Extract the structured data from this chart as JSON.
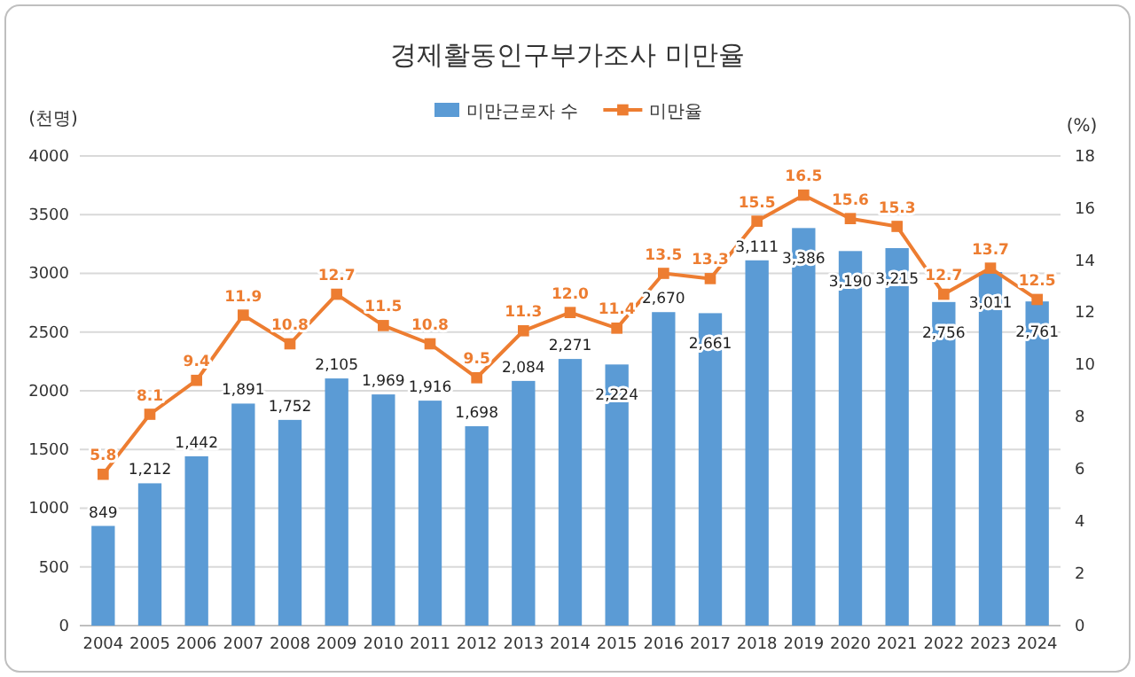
{
  "chart_data": {
    "type": "bar",
    "title": "경제활동인구부가조사 미만율",
    "ylabel": "(천명)",
    "y2label": "(%)",
    "categories": [
      "2004",
      "2005",
      "2006",
      "2007",
      "2008",
      "2009",
      "2010",
      "2011",
      "2012",
      "2013",
      "2014",
      "2015",
      "2016",
      "2017",
      "2018",
      "2019",
      "2020",
      "2021",
      "2022",
      "2023",
      "2024"
    ],
    "series": [
      {
        "name": "미만근로자 수",
        "color": "#5b9bd5",
        "values": [
          849,
          1212,
          1442,
          1891,
          1752,
          2105,
          1969,
          1916,
          1698,
          2084,
          2271,
          2224,
          2670,
          2661,
          3111,
          3386,
          3190,
          3215,
          2756,
          3011,
          2761
        ],
        "value_labels": [
          "849",
          "1,212",
          "1,442",
          "1,891",
          "1,752",
          "2,105",
          "1,969",
          "1,916",
          "1,698",
          "2,084",
          "2,271",
          "2,224",
          "2,670",
          "2,661",
          "3,111",
          "3,386",
          "3,190",
          "3,215",
          "2,756",
          "3,011",
          "2,761"
        ]
      },
      {
        "name": "미만율",
        "type": "line",
        "axis": "y2",
        "color": "#ed7d31",
        "marker": "square",
        "values": [
          5.8,
          8.1,
          9.4,
          11.9,
          10.8,
          12.7,
          11.5,
          10.8,
          9.5,
          11.3,
          12.0,
          11.4,
          13.5,
          13.3,
          15.5,
          16.5,
          15.6,
          15.3,
          12.7,
          13.7,
          12.5
        ],
        "value_labels": [
          "5.8",
          "8.1",
          "9.4",
          "11.9",
          "10.8",
          "12.7",
          "11.5",
          "10.8",
          "9.5",
          "11.3",
          "12.0",
          "11.4",
          "13.5",
          "13.3",
          "15.5",
          "16.5",
          "15.6",
          "15.3",
          "12.7",
          "13.7",
          "12.5"
        ]
      }
    ],
    "ylim": [
      0,
      4000
    ],
    "yticks": [
      0,
      500,
      1000,
      1500,
      2000,
      2500,
      3000,
      3500,
      4000
    ],
    "y2lim": [
      0,
      18
    ],
    "y2ticks": [
      0,
      2,
      4,
      6,
      8,
      10,
      12,
      14,
      16,
      18
    ],
    "grid": "y",
    "legend": "top"
  }
}
